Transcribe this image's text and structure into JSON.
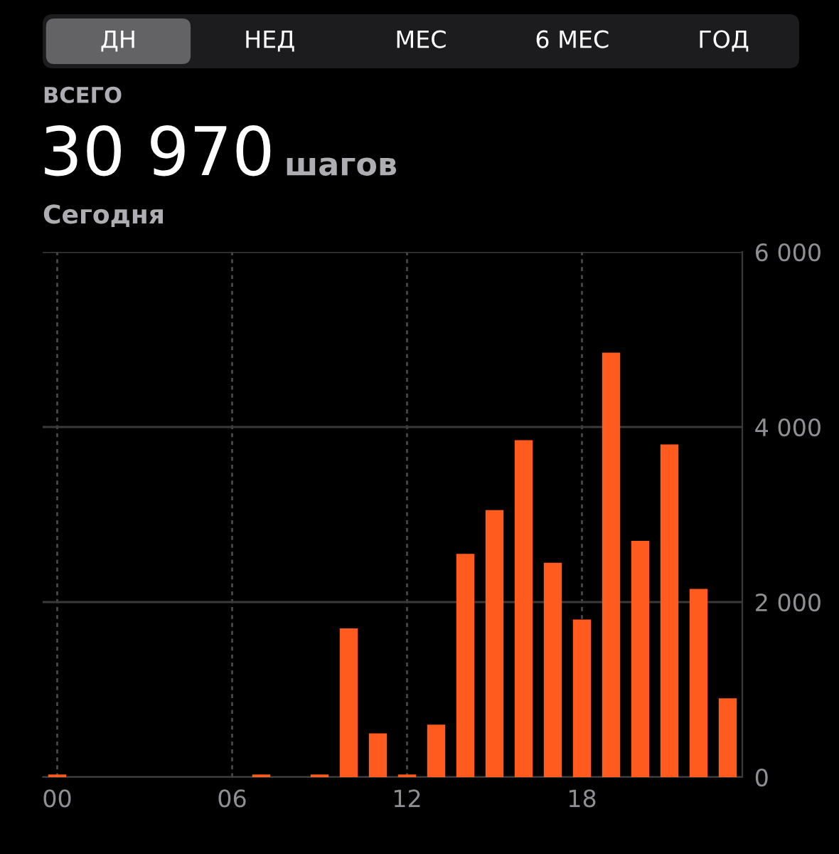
{
  "chart_data": {
    "type": "bar",
    "annotations": [
      "ДН",
      "НЕД",
      "МЕС",
      "6 МЕС",
      "ГОД",
      "ВСЕГО",
      "30 970",
      "шагов",
      "Сегодня"
    ],
    "x": [
      0,
      1,
      2,
      3,
      4,
      5,
      6,
      7,
      8,
      9,
      10,
      11,
      12,
      13,
      14,
      15,
      16,
      17,
      18,
      19,
      20,
      21,
      22,
      23
    ],
    "values": [
      30,
      0,
      0,
      0,
      0,
      0,
      0,
      30,
      0,
      30,
      1700,
      500,
      30,
      600,
      2550,
      3050,
      3850,
      2450,
      1800,
      4850,
      2700,
      3800,
      2150,
      900
    ],
    "color": "#ff5b1f",
    "xlim": [
      -0.5,
      23.5
    ],
    "xticks": [
      {
        "value": 0,
        "label": "00"
      },
      {
        "value": 6,
        "label": "06"
      },
      {
        "value": 12,
        "label": "12"
      },
      {
        "value": 18,
        "label": "18"
      }
    ],
    "ylim": [
      0,
      6000
    ],
    "yticks": [
      {
        "value": 0,
        "label": "0"
      },
      {
        "value": 2000,
        "label": "2 000"
      },
      {
        "value": 4000,
        "label": "4 000"
      },
      {
        "value": 6000,
        "label": "6 000"
      }
    ],
    "grid": true
  }
}
